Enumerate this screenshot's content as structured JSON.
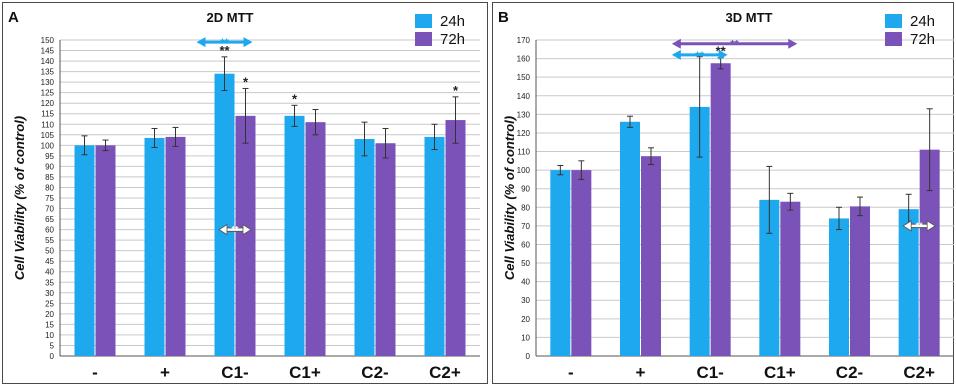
{
  "colors": {
    "series_24h": "#1ea9ef",
    "series_72h": "#7b53b8",
    "error_bar": "#333333",
    "axis": "#555555"
  },
  "chart_data": [
    {
      "type": "bar",
      "panel_letter": "A",
      "title": "2D MTT",
      "ylabel": "Cell Viability (% of control)",
      "categories": [
        "-",
        "+",
        "C1-",
        "C1+",
        "C2-",
        "C2+"
      ],
      "ylim": [
        0,
        150
      ],
      "yticks": [
        0,
        5,
        10,
        15,
        20,
        25,
        30,
        35,
        40,
        45,
        50,
        55,
        60,
        65,
        70,
        75,
        80,
        85,
        90,
        95,
        100,
        105,
        110,
        115,
        120,
        125,
        130,
        135,
        140,
        145,
        150
      ],
      "legend": "top-right",
      "series": [
        {
          "name": "24h",
          "values": [
            100,
            103.5,
            134,
            114,
            103,
            104
          ],
          "errors": [
            4.5,
            4.5,
            8,
            5,
            8,
            6
          ]
        },
        {
          "name": "72h",
          "values": [
            100,
            104,
            114,
            111,
            101,
            112
          ],
          "errors": [
            2.5,
            4.5,
            13,
            6,
            7,
            11
          ]
        }
      ],
      "annotations": [
        {
          "text": "**",
          "category": 2,
          "series": 0,
          "color": "#222222"
        },
        {
          "text": "*",
          "category": 2,
          "series": 1,
          "color": "#222222"
        },
        {
          "text": "*",
          "category": 3,
          "series": 0,
          "color": "#222222"
        },
        {
          "text": "*",
          "category": 5,
          "series": 1,
          "color": "#222222"
        }
      ],
      "brackets": [
        {
          "text": "**",
          "from": 2,
          "to": 3,
          "y_value": 149,
          "color": "#1ea9ef"
        }
      ],
      "inner_arrows": [
        {
          "text": "**",
          "category": 2,
          "y_value": 60
        }
      ]
    },
    {
      "type": "bar",
      "panel_letter": "B",
      "title": "3D MTT",
      "ylabel": "Cell Viability (% of control)",
      "categories": [
        "-",
        "+",
        "C1-",
        "C1+",
        "C2-",
        "C2+"
      ],
      "ylim": [
        0,
        170
      ],
      "yticks": [
        0,
        10,
        20,
        30,
        40,
        50,
        60,
        70,
        80,
        90,
        100,
        110,
        120,
        130,
        140,
        150,
        160,
        170
      ],
      "legend": "top-right",
      "series": [
        {
          "name": "24h",
          "values": [
            100,
            126,
            134,
            84,
            74,
            79
          ],
          "errors": [
            2.5,
            3,
            27,
            18,
            6,
            8
          ]
        },
        {
          "name": "72h",
          "values": [
            100,
            107.5,
            157.5,
            83,
            80.5,
            111
          ],
          "errors": [
            5,
            4.5,
            3,
            4.5,
            5,
            22
          ]
        }
      ],
      "annotations": [
        {
          "text": "**",
          "category": 2,
          "series": 1,
          "color": "#222222"
        }
      ],
      "brackets": [
        {
          "text": "**",
          "from": 2,
          "to": 4,
          "y_value": 168,
          "color": "#7b53b8"
        },
        {
          "text": "**",
          "from": 2,
          "to": 3,
          "y_value": 162,
          "color": "#1ea9ef"
        }
      ],
      "inner_arrows": [
        {
          "text": "**",
          "category": 5,
          "y_value": 70
        }
      ]
    }
  ]
}
